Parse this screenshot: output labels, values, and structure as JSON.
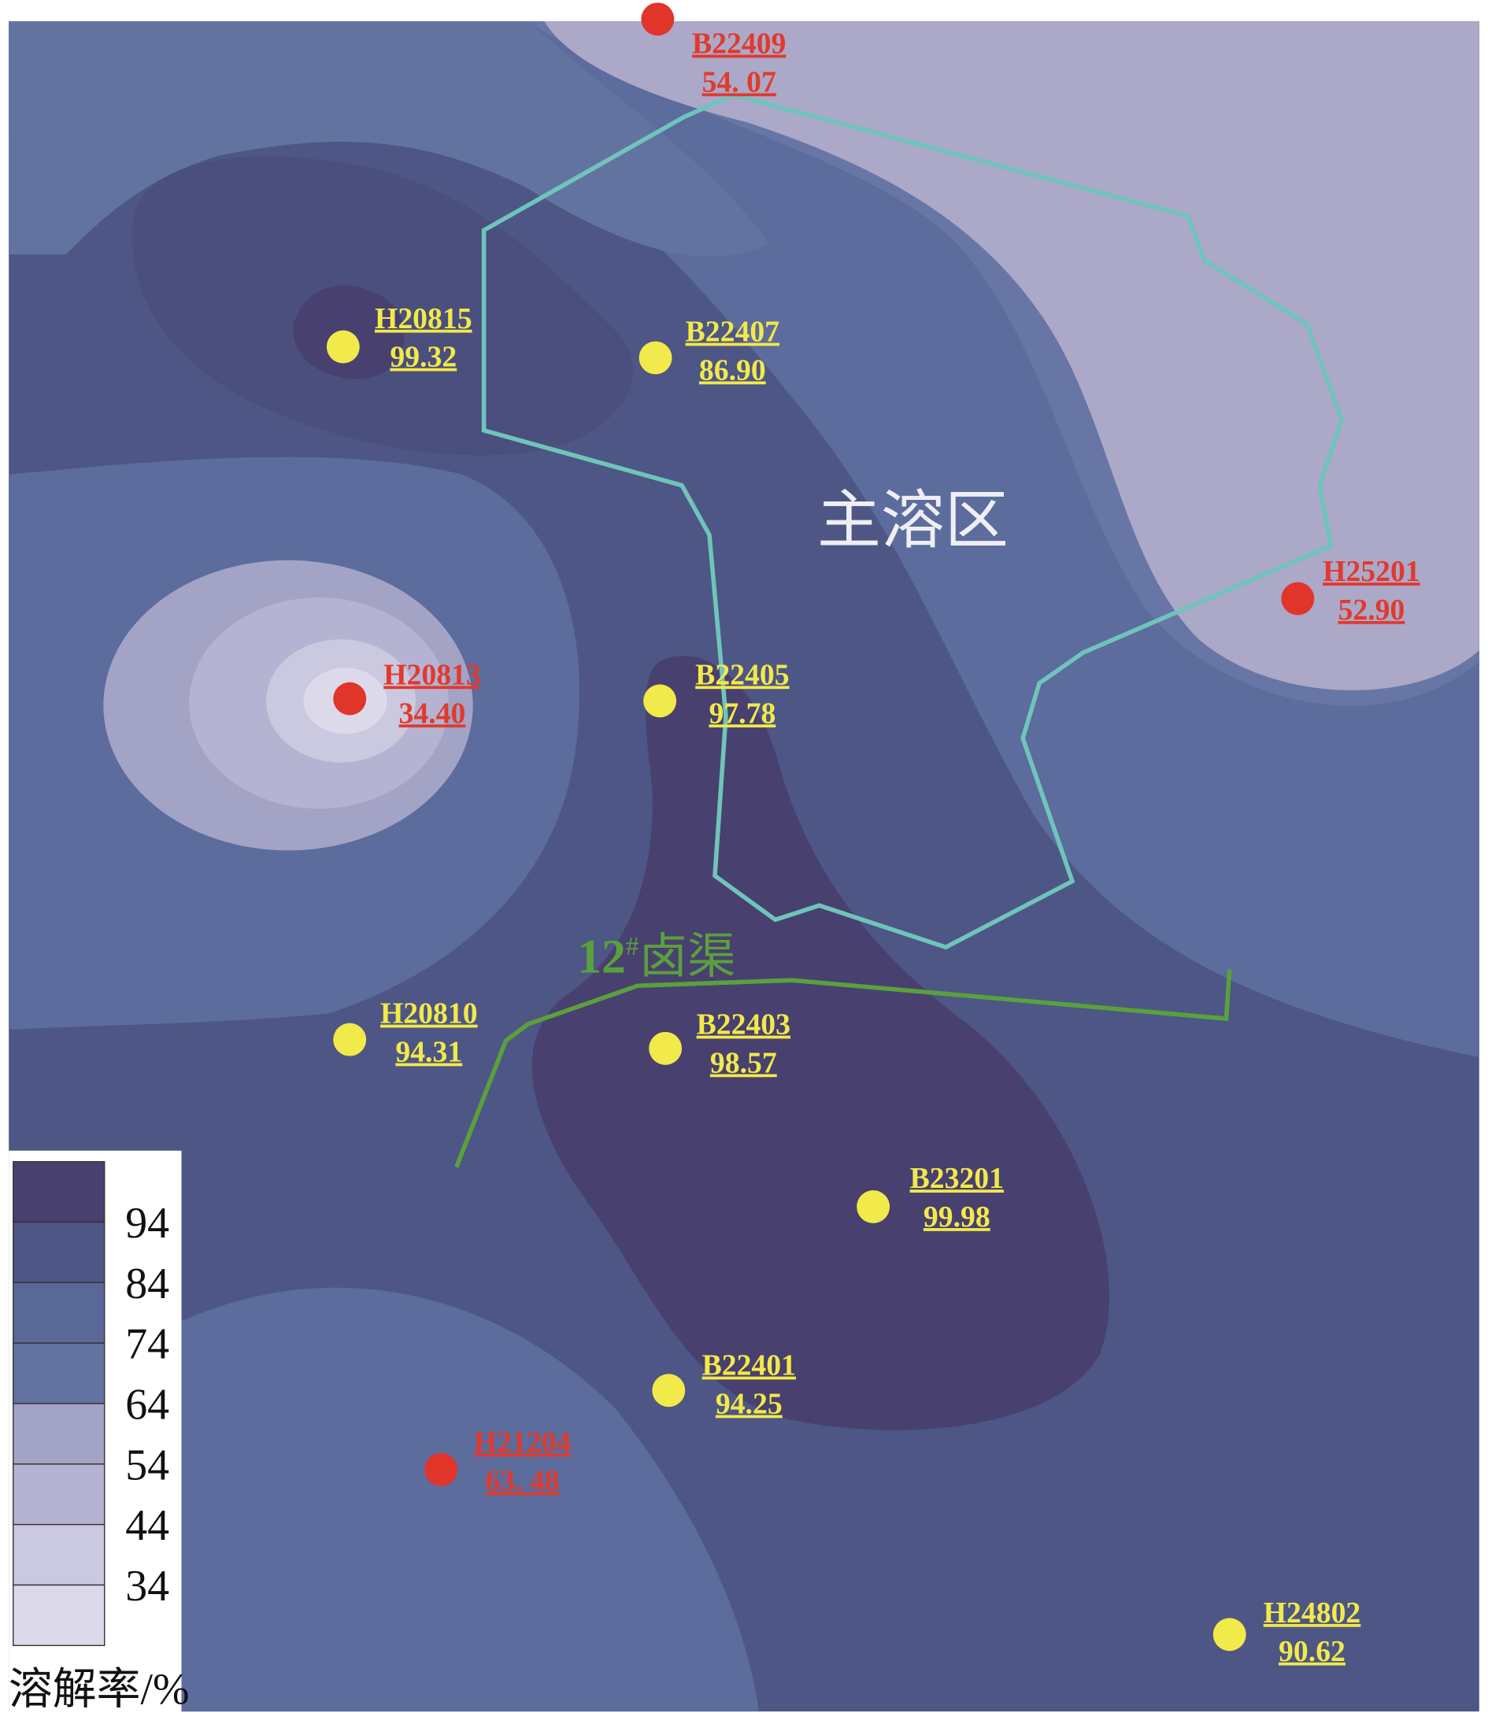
{
  "map": {
    "zone_label": "主溶区",
    "channel_label": {
      "number": "12",
      "mark": "#",
      "name": "卤渠"
    },
    "wells": [
      {
        "name": "B22409",
        "value": "54. 07",
        "color": "#e2352a"
      },
      {
        "name": "H20815",
        "value": "99.32",
        "color": "#f2e94a"
      },
      {
        "name": "B22407",
        "value": "86.90",
        "color": "#f2e94a"
      },
      {
        "name": "H25201",
        "value": "52.90",
        "color": "#e2352a"
      },
      {
        "name": "H20813",
        "value": "34.40",
        "color": "#e2352a"
      },
      {
        "name": "B22405",
        "value": "97.78",
        "color": "#f2e94a"
      },
      {
        "name": "H20810",
        "value": "94.31",
        "color": "#f2e94a"
      },
      {
        "name": "B22403",
        "value": "98.57",
        "color": "#f2e94a"
      },
      {
        "name": "B23201",
        "value": "99.98",
        "color": "#f2e94a"
      },
      {
        "name": "B22401",
        "value": "94.25",
        "color": "#f2e94a"
      },
      {
        "name": "H21204",
        "value": "63. 48",
        "color": "#e2352a"
      },
      {
        "name": "H24802",
        "value": "90.62",
        "color": "#f2e94a"
      }
    ],
    "legend": {
      "title": "溶解率/%",
      "levels": [
        94,
        84,
        74,
        64,
        54,
        44,
        34
      ],
      "colors": [
        "#48406e",
        "#4d5684",
        "#5a6898",
        "#6373a0",
        "#a3a3c6",
        "#b6b3d2",
        "#cbc9e0",
        "#dcdaea"
      ]
    }
  }
}
